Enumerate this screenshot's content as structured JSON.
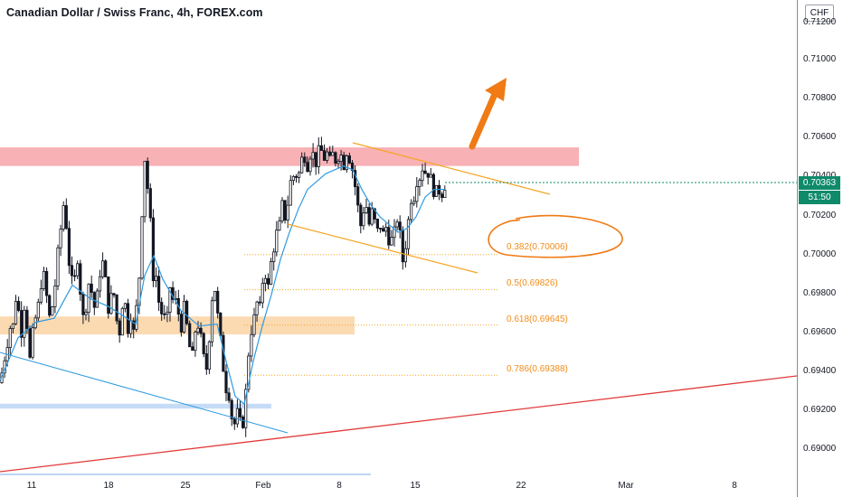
{
  "title": "Canadian Dollar / Swiss Franc, 4h, FOREX.com",
  "currency_button": "CHF",
  "price_axis": {
    "ticks": [
      "0.71200",
      "0.71000",
      "0.70800",
      "0.70600",
      "0.70400",
      "0.70200",
      "0.70000",
      "0.69800",
      "0.69600",
      "0.69400",
      "0.69200",
      "0.69000"
    ],
    "last_price": "0.70363",
    "countdown": "51:50"
  },
  "time_axis": {
    "ticks": [
      "11",
      "18",
      "25",
      "Feb",
      "8",
      "15",
      "22",
      "Mar",
      "8"
    ]
  },
  "fib_levels": [
    {
      "label": "0.382(0.70006)",
      "price": 0.70006
    },
    {
      "label": "0.5(0.69826)",
      "price": 0.69826
    },
    {
      "label": "0.618(0.69645)",
      "price": 0.69645
    },
    {
      "label": "0.786(0.69388)",
      "price": 0.69388
    }
  ],
  "colors": {
    "up_candle": "#ffffff",
    "down_candle": "#131722",
    "ma_line": "#2f9ae0",
    "resistance_zone": "#f7a3a8",
    "support_zone": "#fad3a5",
    "low_zone": "#bcd6f5",
    "channel": "#f5a623",
    "trendline": "#e23b3b",
    "arrow": "#f07a14",
    "price_badge": "#0f8a6b"
  },
  "chart_data": {
    "type": "candlestick",
    "title": "Canadian Dollar / Swiss Franc, 4h, FOREX.com",
    "ylim": [
      0.6888,
      0.7131
    ],
    "x_tick_labels": [
      "11",
      "18",
      "25",
      "Feb",
      "8",
      "15",
      "22",
      "Mar",
      "8"
    ],
    "price_path": [
      [
        0,
        0.6935
      ],
      [
        4,
        0.6945
      ],
      [
        8,
        0.6955
      ],
      [
        12,
        0.6965
      ],
      [
        14,
        0.6962
      ],
      [
        16,
        0.6973
      ],
      [
        18,
        0.698
      ],
      [
        20,
        0.6974
      ],
      [
        22,
        0.6966
      ],
      [
        24,
        0.696
      ],
      [
        26,
        0.6972
      ],
      [
        28,
        0.6978
      ],
      [
        29,
        0.697
      ],
      [
        31,
        0.6958
      ],
      [
        33,
        0.6947
      ],
      [
        35,
        0.6958
      ],
      [
        37,
        0.6962
      ],
      [
        40,
        0.697
      ],
      [
        43,
        0.6976
      ],
      [
        46,
        0.6988
      ],
      [
        49,
        0.699
      ],
      [
        51,
        0.6982
      ],
      [
        53,
        0.6972
      ],
      [
        55,
        0.6968
      ],
      [
        57,
        0.6972
      ],
      [
        60,
        0.698
      ],
      [
        63,
        0.6997
      ],
      [
        66,
        0.701
      ],
      [
        69,
        0.702
      ],
      [
        71,
        0.703
      ],
      [
        73,
        0.7018
      ],
      [
        75,
        0.7002
      ],
      [
        78,
        0.699
      ],
      [
        81,
        0.6984
      ],
      [
        84,
        0.6992
      ],
      [
        86,
        0.7
      ],
      [
        88,
        0.6986
      ],
      [
        90,
        0.6976
      ],
      [
        92,
        0.6968
      ],
      [
        95,
        0.6974
      ],
      [
        98,
        0.6986
      ],
      [
        101,
        0.6982
      ],
      [
        103,
        0.6977
      ],
      [
        105,
        0.6972
      ],
      [
        107,
        0.6978
      ],
      [
        110,
        0.699
      ],
      [
        113,
        0.6998
      ],
      [
        116,
        0.699
      ],
      [
        118,
        0.6982
      ],
      [
        120,
        0.6972
      ],
      [
        122,
        0.6976
      ],
      [
        124,
        0.6982
      ],
      [
        126,
        0.698
      ],
      [
        128,
        0.697
      ],
      [
        130,
        0.6964
      ],
      [
        132,
        0.696
      ],
      [
        134,
        0.697
      ],
      [
        136,
        0.6978
      ],
      [
        138,
        0.6976
      ],
      [
        140,
        0.697
      ],
      [
        142,
        0.696
      ],
      [
        143,
        0.6965
      ],
      [
        144,
        0.6972
      ],
      [
        145,
        0.6968
      ],
      [
        146,
        0.6966
      ],
      [
        148,
        0.696
      ],
      [
        150,
        0.697
      ],
      [
        152,
        0.6978
      ],
      [
        154,
        0.699
      ],
      [
        156,
        0.701
      ],
      [
        158,
        0.7035
      ],
      [
        160,
        0.705
      ],
      [
        162,
        0.7042
      ],
      [
        164,
        0.703
      ],
      [
        166,
        0.702
      ],
      [
        168,
        0.7
      ],
      [
        170,
        0.6985
      ],
      [
        172,
        0.6992
      ],
      [
        174,
        0.6982
      ],
      [
        176,
        0.6975
      ],
      [
        178,
        0.697
      ],
      [
        180,
        0.6972
      ],
      [
        182,
        0.6968
      ],
      [
        184,
        0.6965
      ],
      [
        186,
        0.6972
      ],
      [
        188,
        0.6984
      ],
      [
        190,
        0.698
      ],
      [
        192,
        0.6975
      ],
      [
        194,
        0.6977
      ],
      [
        196,
        0.6973
      ],
      [
        198,
        0.6969
      ],
      [
        200,
        0.6962
      ],
      [
        202,
        0.697
      ],
      [
        204,
        0.6975
      ],
      [
        206,
        0.6966
      ],
      [
        208,
        0.696
      ],
      [
        210,
        0.6952
      ],
      [
        212,
        0.6946
      ],
      [
        214,
        0.6953
      ],
      [
        216,
        0.6962
      ],
      [
        218,
        0.6966
      ],
      [
        220,
        0.6963
      ],
      [
        222,
        0.6958
      ],
      [
        224,
        0.6952
      ],
      [
        226,
        0.6945
      ],
      [
        228,
        0.6941
      ],
      [
        230,
        0.695
      ],
      [
        232,
        0.6962
      ],
      [
        234,
        0.6976
      ],
      [
        236,
        0.6986
      ],
      [
        238,
        0.6982
      ],
      [
        240,
        0.6972
      ],
      [
        242,
        0.6964
      ],
      [
        244,
        0.6956
      ],
      [
        246,
        0.6946
      ],
      [
        248,
        0.6938
      ],
      [
        250,
        0.6932
      ],
      [
        252,
        0.6932
      ],
      [
        254,
        0.6926
      ],
      [
        256,
        0.6918
      ],
      [
        258,
        0.6912
      ],
      [
        260,
        0.6915
      ],
      [
        262,
        0.692
      ],
      [
        264,
        0.6917
      ],
      [
        266,
        0.6914
      ],
      [
        268,
        0.6912
      ],
      [
        270,
        0.692
      ],
      [
        272,
        0.6932
      ],
      [
        274,
        0.6946
      ],
      [
        276,
        0.6956
      ],
      [
        278,
        0.6962
      ],
      [
        280,
        0.6966
      ],
      [
        282,
        0.697
      ],
      [
        284,
        0.6976
      ],
      [
        286,
        0.6972
      ],
      [
        288,
        0.6974
      ],
      [
        290,
        0.6986
      ],
      [
        292,
        0.6992
      ],
      [
        294,
        0.699
      ],
      [
        296,
        0.6982
      ],
      [
        298,
        0.699
      ],
      [
        300,
        0.6998
      ],
      [
        302,
        0.7002
      ],
      [
        304,
        0.7008
      ],
      [
        306,
        0.7012
      ],
      [
        308,
        0.7012
      ],
      [
        310,
        0.702
      ],
      [
        312,
        0.7026
      ],
      [
        314,
        0.7022
      ],
      [
        316,
        0.7018
      ],
      [
        318,
        0.7026
      ],
      [
        320,
        0.7034
      ],
      [
        322,
        0.704
      ],
      [
        324,
        0.7042
      ],
      [
        326,
        0.7036
      ],
      [
        328,
        0.7043
      ],
      [
        330,
        0.704
      ],
      [
        332,
        0.7047
      ],
      [
        334,
        0.705
      ],
      [
        336,
        0.7052
      ],
      [
        338,
        0.7049
      ],
      [
        340,
        0.7046
      ],
      [
        342,
        0.705
      ],
      [
        344,
        0.7054
      ],
      [
        346,
        0.7052
      ],
      [
        348,
        0.705
      ],
      [
        350,
        0.7046
      ],
      [
        352,
        0.7054
      ],
      [
        354,
        0.705
      ],
      [
        356,
        0.7055
      ],
      [
        358,
        0.705
      ],
      [
        360,
        0.705
      ],
      [
        362,
        0.7053
      ],
      [
        364,
        0.7048
      ],
      [
        366,
        0.705
      ],
      [
        368,
        0.7052
      ],
      [
        370,
        0.7048
      ],
      [
        372,
        0.705
      ],
      [
        374,
        0.7051
      ],
      [
        376,
        0.7053
      ],
      [
        378,
        0.705
      ],
      [
        380,
        0.7046
      ],
      [
        382,
        0.7052
      ],
      [
        384,
        0.7054
      ],
      [
        386,
        0.7051
      ],
      [
        388,
        0.7045
      ],
      [
        390,
        0.7044
      ],
      [
        392,
        0.7038
      ],
      [
        394,
        0.703
      ],
      [
        396,
        0.7024
      ],
      [
        398,
        0.7018
      ],
      [
        400,
        0.7012
      ],
      [
        402,
        0.7024
      ],
      [
        404,
        0.7028
      ],
      [
        406,
        0.7022
      ],
      [
        408,
        0.7016
      ],
      [
        410,
        0.702
      ],
      [
        412,
        0.7024
      ],
      [
        414,
        0.7018
      ],
      [
        416,
        0.7014
      ],
      [
        418,
        0.7012
      ],
      [
        420,
        0.7015
      ],
      [
        422,
        0.7016
      ],
      [
        424,
        0.701
      ],
      [
        426,
        0.7016
      ],
      [
        428,
        0.7012
      ],
      [
        430,
        0.7008
      ],
      [
        432,
        0.701
      ],
      [
        434,
        0.7006
      ],
      [
        436,
        0.7012
      ],
      [
        438,
        0.702
      ],
      [
        440,
        0.7018
      ],
      [
        442,
        0.7012
      ],
      [
        444,
        0.7
      ],
      [
        446,
        0.6996
      ],
      [
        448,
        0.7004
      ],
      [
        450,
        0.7012
      ],
      [
        452,
        0.702
      ],
      [
        454,
        0.7028
      ],
      [
        456,
        0.7032
      ],
      [
        458,
        0.703
      ],
      [
        460,
        0.7036
      ],
      [
        462,
        0.7042
      ],
      [
        464,
        0.704
      ],
      [
        466,
        0.7044
      ],
      [
        468,
        0.7046
      ],
      [
        470,
        0.7043
      ],
      [
        472,
        0.704
      ],
      [
        474,
        0.7044
      ],
      [
        476,
        0.704
      ],
      [
        478,
        0.7036
      ],
      [
        480,
        0.7032
      ],
      [
        482,
        0.7034
      ],
      [
        484,
        0.703
      ],
      [
        486,
        0.7034
      ],
      [
        488,
        0.703
      ],
      [
        490,
        0.7036
      ],
      [
        492,
        0.7036
      ]
    ],
    "moving_average": [
      [
        0,
        0.6936
      ],
      [
        20,
        0.6958
      ],
      [
        40,
        0.6966
      ],
      [
        60,
        0.6968
      ],
      [
        80,
        0.6985
      ],
      [
        100,
        0.6978
      ],
      [
        120,
        0.6974
      ],
      [
        140,
        0.6968
      ],
      [
        150,
        0.6965
      ],
      [
        160,
        0.699
      ],
      [
        170,
        0.7
      ],
      [
        180,
        0.6988
      ],
      [
        200,
        0.6972
      ],
      [
        220,
        0.6964
      ],
      [
        240,
        0.6965
      ],
      [
        250,
        0.6946
      ],
      [
        260,
        0.6928
      ],
      [
        270,
        0.6924
      ],
      [
        280,
        0.6946
      ],
      [
        290,
        0.6964
      ],
      [
        300,
        0.698
      ],
      [
        310,
        0.6998
      ],
      [
        320,
        0.7012
      ],
      [
        330,
        0.7024
      ],
      [
        340,
        0.7034
      ],
      [
        350,
        0.7038
      ],
      [
        360,
        0.7042
      ],
      [
        370,
        0.7044
      ],
      [
        380,
        0.7046
      ],
      [
        390,
        0.7044
      ],
      [
        400,
        0.7034
      ],
      [
        410,
        0.7026
      ],
      [
        420,
        0.702
      ],
      [
        430,
        0.7016
      ],
      [
        440,
        0.7012
      ],
      [
        450,
        0.7014
      ],
      [
        460,
        0.702
      ],
      [
        470,
        0.703
      ],
      [
        480,
        0.7034
      ],
      [
        492,
        0.7034
      ]
    ],
    "zones": [
      {
        "name": "resistance",
        "y_low": 0.7046,
        "y_high": 0.70555
      },
      {
        "name": "support",
        "y_low": 0.69597,
        "y_high": 0.69689
      },
      {
        "name": "low",
        "y_low": 0.69217,
        "y_high": 0.69242
      }
    ],
    "fib_retracement": [
      0.382,
      0.5,
      0.618,
      0.786
    ],
    "grid": false
  }
}
